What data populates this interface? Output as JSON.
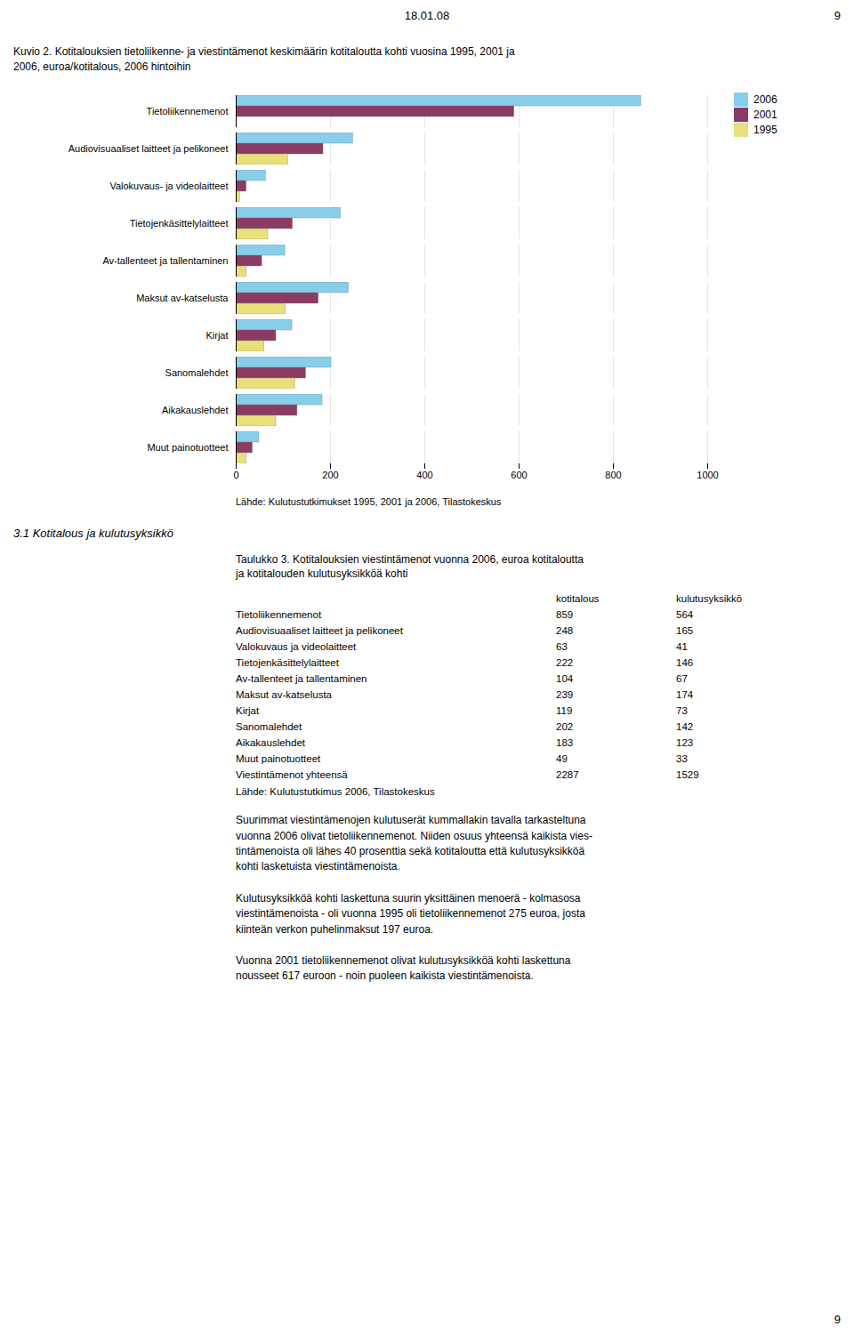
{
  "header": {
    "date": "18.01.08",
    "page": "9"
  },
  "chart_data": {
    "type": "bar",
    "orientation": "horizontal",
    "title": "Kuvio 2. Kotitalouksien tietoliikenne- ja viestintämenot keskimäärin kotitaloutta kohti vuosina 1995, 2001 ja\n2006, euroa/kotitalous, 2006 hintoihin",
    "categories": [
      "Muut painotuotteet",
      "Aikakauslehdet",
      "Sanomalehdet",
      "Kirjat",
      "Maksut av-katselusta",
      "Av-tallenteet ja tallentaminen",
      "Tietojenkäsittelylaitteet",
      "Valokuvaus- ja videolaitteet",
      "Audiovisuaaliset laitteet ja pelikoneet",
      "Tietoliikennemenot"
    ],
    "series": [
      {
        "name": "2006",
        "color": "#87CEEB",
        "values": [
          49,
          183,
          202,
          119,
          239,
          104,
          222,
          63,
          248,
          859
        ]
      },
      {
        "name": "2001",
        "color": "#8B3A62",
        "values": [
          35,
          130,
          148,
          85,
          175,
          55,
          120,
          22,
          185,
          590
        ]
      },
      {
        "name": "1995",
        "color": "#E8E07A",
        "values": [
          22,
          85,
          125,
          60,
          105,
          22,
          68,
          8,
          110,
          0
        ]
      }
    ],
    "xlim": [
      0,
      1000
    ],
    "xticks": [
      0,
      200,
      400,
      600,
      800,
      1000
    ],
    "grid": true,
    "legend": "right",
    "source": "Lähde: Kulutustutkimukset 1995, 2001 ja 2006, Tilastokeskus"
  },
  "section_header": "3.1 Kotitalous ja kulutusyksikkö",
  "table": {
    "title": "Taulukko 3. Kotitalouksien viestintämenot vuonna 2006, euroa kotitaloutta\nja kotitalouden kulutusyksikköä kohti",
    "columns": [
      "kotitalous",
      "kulutusyksikkö"
    ],
    "rows": [
      [
        "Tietoliikennemenot",
        859,
        564
      ],
      [
        "Audiovisuaaliset laitteet ja pelikoneet",
        248,
        165
      ],
      [
        "Valokuvaus ja videolaitteet",
        63,
        41
      ],
      [
        "Tietojenkäsittelylaitteet",
        222,
        146
      ],
      [
        "Av-tallenteet ja tallentaminen",
        104,
        67
      ],
      [
        "Maksut av-katselusta",
        239,
        174
      ],
      [
        "Kirjat",
        119,
        73
      ],
      [
        "Sanomalehdet",
        202,
        142
      ],
      [
        "Aikakauslehdet",
        183,
        123
      ],
      [
        "Muut painotuotteet",
        49,
        33
      ],
      [
        "Viestintämenot yhteensä",
        2287,
        1529
      ]
    ],
    "source": "Lähde: Kulutustutkimus 2006, Tilastokeskus"
  },
  "paragraphs": [
    "Suurimmat viestintämenojen kulutuserät kummallakin tavalla tarkasteltuna\nvuonna 2006 olivat tietoliikennemenot. Niiden osuus yhteensä kaikista vies-\ntintämenoista oli lähes 40 prosenttia sekä kotitaloutta että kulutusyksikköä\nkohti lasketuista viestintämenoista.",
    "Kulutusyksikköä kohti laskettuna suurin yksittäinen menoerä - kolmasosa\nviestintämenoista - oli vuonna 1995 oli tietoliikennemenot 275 euroa, josta\nkiinteän verkon puhelinmaksut 197 euroa.",
    "Vuonna 2001 tietoliikennemenot olivat kulutusyksikköä kohti laskettuna\nnousseet 617 euroon - noin puoleen kaikista viestintämenoista."
  ],
  "footer": "9"
}
